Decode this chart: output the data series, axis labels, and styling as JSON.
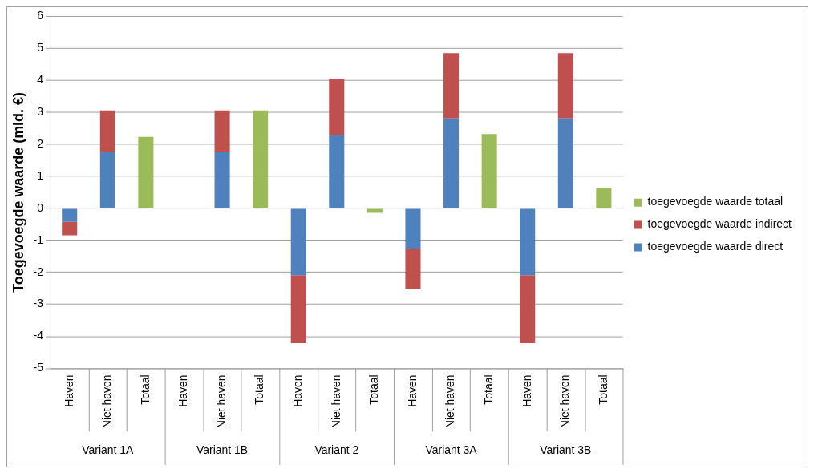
{
  "chart_data": {
    "type": "bar",
    "stacked": true,
    "ylabel": "Toegevoegde waarde (mld. €)",
    "categories": [
      "Haven",
      "Niet haven",
      "Totaal",
      "Haven",
      "Niet haven",
      "Totaal",
      "Haven",
      "Niet haven",
      "Totaal",
      "Haven",
      "Niet haven",
      "Totaal",
      "Haven",
      "Niet haven",
      "Totaal"
    ],
    "annotations": [
      "Variant 1A",
      "Variant 1B",
      "Variant 2",
      "Variant 3A",
      "Variant 3B"
    ],
    "series": [
      {
        "name": "toegevoegde waarde direct",
        "color": "#4f81bd",
        "values": [
          -0.42,
          1.76,
          null,
          null,
          1.76,
          null,
          -2.09,
          2.28,
          null,
          -1.26,
          2.81,
          null,
          -2.09,
          2.81,
          null
        ]
      },
      {
        "name": "toegevoegde waarde indirect",
        "color": "#c0504d",
        "values": [
          -0.42,
          1.3,
          null,
          null,
          1.3,
          null,
          -2.12,
          1.76,
          null,
          -1.27,
          2.04,
          null,
          -2.12,
          2.04,
          null
        ]
      },
      {
        "name": "toegevoegde waarde totaal",
        "color": "#9bbb59",
        "values": [
          null,
          null,
          2.23,
          null,
          null,
          3.06,
          null,
          null,
          -0.14,
          null,
          null,
          2.32,
          null,
          null,
          0.64
        ]
      }
    ],
    "ylim": [
      -5,
      6
    ],
    "yticks": [
      -5,
      -4,
      -3,
      -2,
      -1,
      0,
      1,
      2,
      3,
      4,
      5,
      6
    ],
    "grid": "y",
    "legend": "right"
  }
}
